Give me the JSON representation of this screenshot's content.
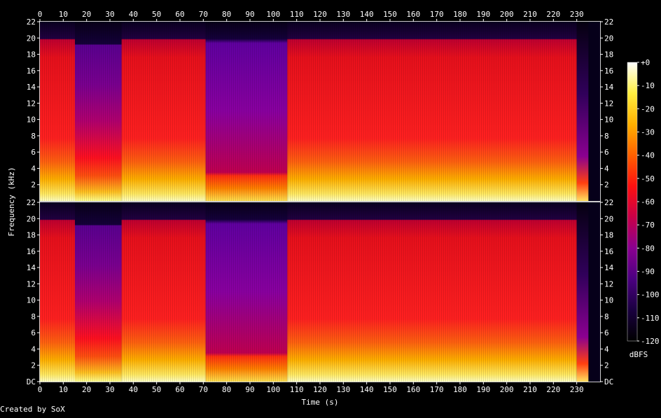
{
  "chart_data": {
    "type": "heatmap",
    "title": "",
    "xlabel": "Time (s)",
    "ylabel": "Frequency (kHz)",
    "xlim": [
      0,
      240
    ],
    "ylim_khz": [
      0,
      22
    ],
    "x_ticks": [
      "0",
      "10",
      "20",
      "30",
      "40",
      "50",
      "60",
      "70",
      "80",
      "90",
      "100",
      "110",
      "120",
      "130",
      "140",
      "150",
      "160",
      "170",
      "180",
      "190",
      "200",
      "210",
      "220",
      "230"
    ],
    "y_ticks": [
      "DC",
      "2",
      "4",
      "6",
      "8",
      "10",
      "12",
      "14",
      "16",
      "18",
      "20",
      "22"
    ],
    "channels": [
      "top",
      "bottom"
    ],
    "colorbar": {
      "label": "dBFS",
      "ticks": [
        "+0",
        "-10",
        "-20",
        "-30",
        "-40",
        "-50",
        "-60",
        "-70",
        "-80",
        "-90",
        "-100",
        "-110",
        "-120"
      ],
      "range_db": [
        -120,
        0
      ],
      "colormap": [
        "#000000",
        "#1a0040",
        "#4b0080",
        "#8a0090",
        "#c80048",
        "#ff1010",
        "#ff6000",
        "#ffb000",
        "#ffee40",
        "#ffffff"
      ]
    },
    "segments": [
      {
        "t": [
          0,
          15
        ],
        "level": "high",
        "cutoff_khz": 20
      },
      {
        "t": [
          15,
          35
        ],
        "level": "medium",
        "cutoff_khz": 19
      },
      {
        "t": [
          35,
          71
        ],
        "level": "high",
        "cutoff_khz": 20
      },
      {
        "t": [
          71,
          106
        ],
        "level": "low",
        "cutoff_khz": 20
      },
      {
        "t": [
          106,
          230
        ],
        "level": "high",
        "cutoff_khz": 20
      },
      {
        "t": [
          230,
          235
        ],
        "level": "fadeout",
        "cutoff_khz": 6
      }
    ],
    "credit": "Created by SoX"
  }
}
